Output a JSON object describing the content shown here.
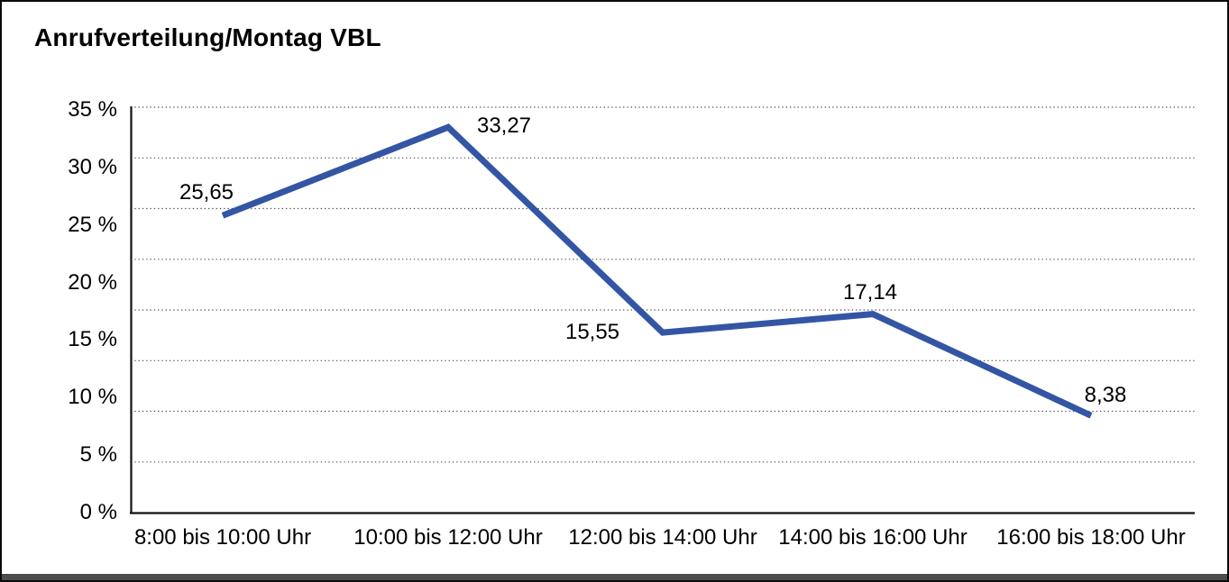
{
  "chart_data": {
    "type": "line",
    "title": "Anrufverteilung/Montag VBL",
    "categories": [
      "8:00 bis 10:00 Uhr",
      "10:00 bis 12:00 Uhr",
      "12:00 bis 14:00 Uhr",
      "14:00 bis 16:00 Uhr",
      "16:00 bis 18:00 Uhr"
    ],
    "values": [
      25.65,
      33.27,
      15.55,
      17.14,
      8.38
    ],
    "point_labels": [
      "25,65",
      "33,27",
      "15,55",
      "17,14",
      "8,38"
    ],
    "y_ticks": [
      "35 %",
      "30 %",
      "25 %",
      "20 %",
      "15 %",
      "10 %",
      "5 %",
      "0 %"
    ],
    "ylim": [
      0,
      35
    ],
    "y_unit": "%",
    "xlabel": "",
    "ylabel": "",
    "legend": "none",
    "grid": "horizontal-dotted",
    "line_color": "#3355a4",
    "axis_color": "#111111",
    "gridline_color": "#4d4d4d",
    "text_color": "#000000"
  }
}
